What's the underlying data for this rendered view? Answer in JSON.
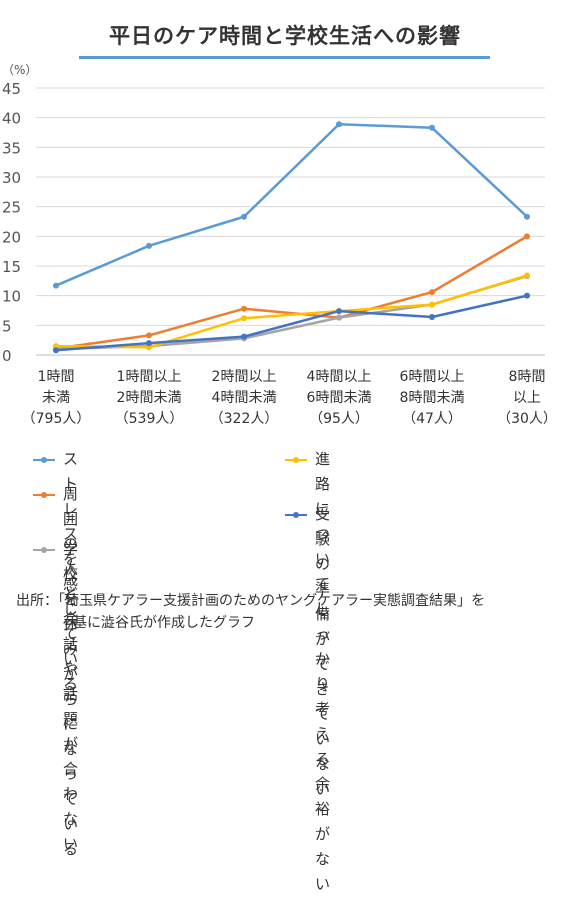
{
  "chart_data": {
    "type": "line",
    "title": "平日のケア時間と学校生活への影響",
    "unit_label": "（%）",
    "ylim": [
      0,
      45
    ],
    "yticks": [
      "0",
      "5",
      "10",
      "15",
      "20",
      "25",
      "30",
      "35",
      "40",
      "45"
    ],
    "categories": [
      {
        "line1": "1時間",
        "line2": "未満",
        "line3": "（795人）"
      },
      {
        "line1": "1時間以上",
        "line2": "2時間未満",
        "line3": "（539人）"
      },
      {
        "line1": "2時間以上",
        "line2": "4時間未満",
        "line3": "（322人）"
      },
      {
        "line1": "4時間以上",
        "line2": "6時間未満",
        "line3": "（95人）"
      },
      {
        "line1": "6時間以上",
        "line2": "8時間未満",
        "line3": "（47人）"
      },
      {
        "line1": "8時間",
        "line2": "以上",
        "line3": "（30人）"
      }
    ],
    "series": [
      {
        "name": "ストレスを感じている",
        "color": "#5b9bd5",
        "values": [
          11.7,
          18.4,
          23.3,
          38.9,
          38.3,
          23.3
        ]
      },
      {
        "name": "周囲の人と会話や話題が合わない",
        "color": "#ed7d31",
        "values": [
          1.1,
          3.3,
          7.8,
          6.3,
          10.6,
          20.0
        ]
      },
      {
        "name": "学校を休みがちになっている",
        "color": "#a5a5a5",
        "values": [
          1.0,
          1.5,
          2.8,
          6.3,
          8.5,
          13.3
        ]
      },
      {
        "name": "進路についてしっかり考える余裕がない",
        "color": "#ffc000",
        "values": [
          1.5,
          1.3,
          6.2,
          7.4,
          8.5,
          13.4
        ]
      },
      {
        "name": "受験の準備ができていない",
        "color": "#4472c4",
        "values": [
          0.8,
          2.0,
          3.1,
          7.4,
          6.4,
          10.0
        ]
      }
    ],
    "legend": [
      {
        "label_lines": [
          "ストレスを感じている"
        ],
        "color": "#5b9bd5"
      },
      {
        "label_lines": [
          "周囲の人と会話や話題が",
          "合わない"
        ],
        "color": "#ed7d31"
      },
      {
        "label_lines": [
          "学校を休みがちになっている"
        ],
        "color": "#a5a5a5"
      },
      {
        "label_lines": [
          "進路についてしっかり考える",
          "余裕がない"
        ],
        "color": "#ffc000"
      },
      {
        "label_lines": [
          "受験の準備ができていない"
        ],
        "color": "#4472c4"
      }
    ],
    "grid": true,
    "legend_placement": "bottom"
  },
  "source": {
    "line1": "出所：「埼玉県ケアラー支援計画のためのヤングケアラー実態調査結果」を",
    "line2": "基に澁谷氏が作成したグラフ"
  }
}
